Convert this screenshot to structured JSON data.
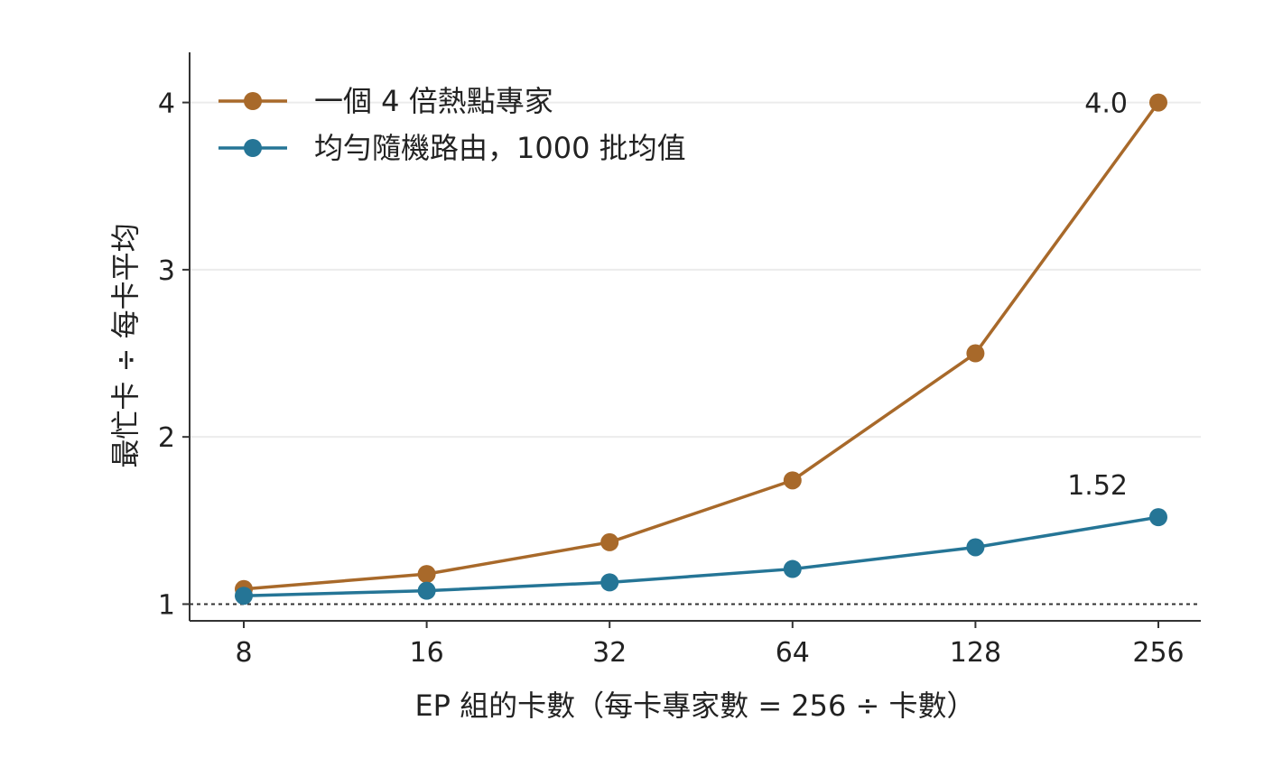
{
  "chart_data": {
    "type": "line",
    "x": [
      8,
      16,
      32,
      64,
      128,
      256
    ],
    "x_scale": "log2",
    "xlabel": "EP 組的卡數（每卡專家數 = 256 ÷ 卡數）",
    "ylabel": "最忙卡 ÷ 每卡平均",
    "ylim": [
      0.9,
      4.3
    ],
    "yticks": [
      1,
      2,
      3,
      4
    ],
    "grid": "horizontal",
    "legend_position": "top-left",
    "reference_line": {
      "y": 1,
      "style": "dotted"
    },
    "series": [
      {
        "name": "一個 4 倍熱點專家",
        "color": "#a8692a",
        "values": [
          1.09,
          1.18,
          1.37,
          1.74,
          2.5,
          4.0
        ],
        "end_label": "4.0"
      },
      {
        "name": "均勻隨機路由，1000 批均值",
        "color": "#257596",
        "values": [
          1.05,
          1.08,
          1.13,
          1.21,
          1.34,
          1.52
        ],
        "end_label": "1.52"
      }
    ]
  }
}
